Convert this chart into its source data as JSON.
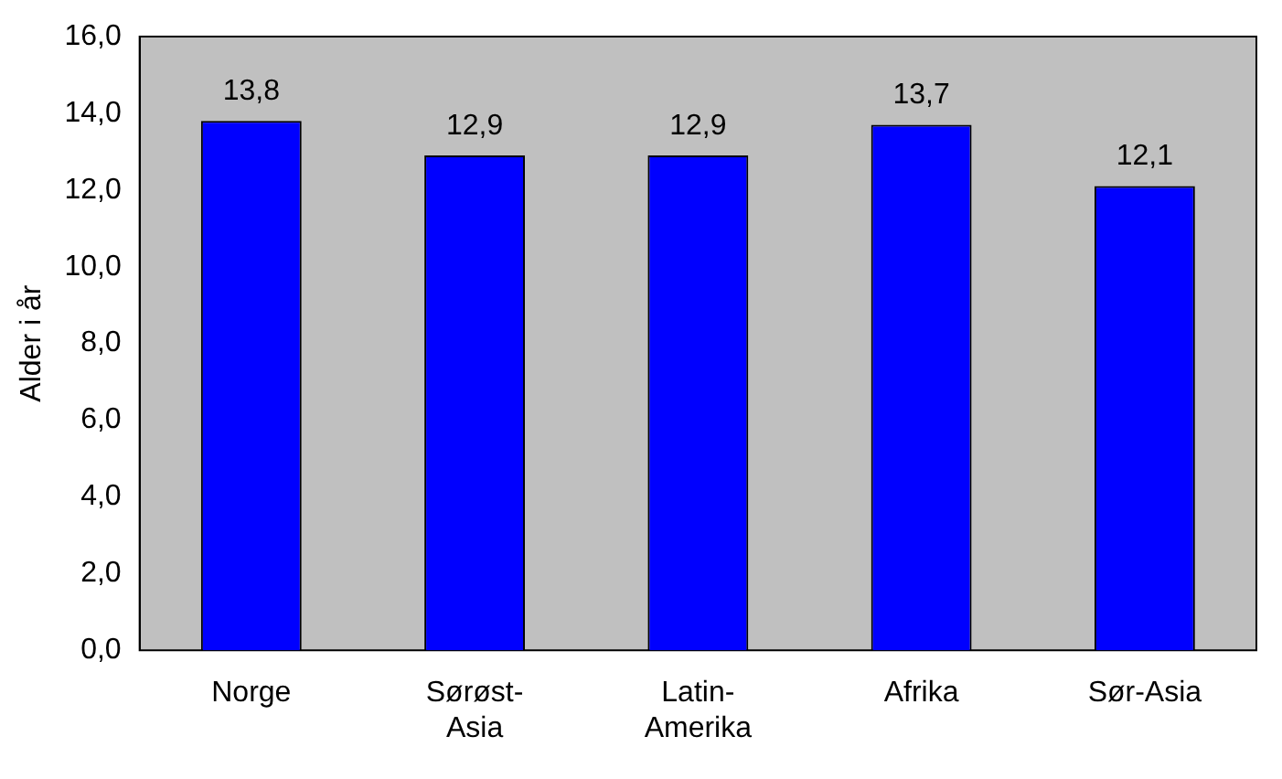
{
  "chart_data": {
    "type": "bar",
    "ylabel": "Alder i år",
    "categories": [
      "Norge",
      "Sørøst-\nAsia",
      "Latin-\nAmerika",
      "Afrika",
      "Sør-Asia"
    ],
    "values": [
      13.8,
      12.9,
      12.9,
      13.7,
      12.1
    ],
    "value_labels": [
      "13,8",
      "12,9",
      "12,9",
      "13,7",
      "12,1"
    ],
    "color": "#0000ff",
    "ylim": [
      0,
      16
    ],
    "yticks": [
      {
        "value": 0,
        "label": "0,0"
      },
      {
        "value": 2,
        "label": "2,0"
      },
      {
        "value": 4,
        "label": "4,0"
      },
      {
        "value": 6,
        "label": "6,0"
      },
      {
        "value": 8,
        "label": "8,0"
      },
      {
        "value": 10,
        "label": "10,0"
      },
      {
        "value": 12,
        "label": "12,0"
      },
      {
        "value": 14,
        "label": "14,0"
      },
      {
        "value": 16,
        "label": "16,0"
      }
    ],
    "grid": false,
    "legend": false
  }
}
